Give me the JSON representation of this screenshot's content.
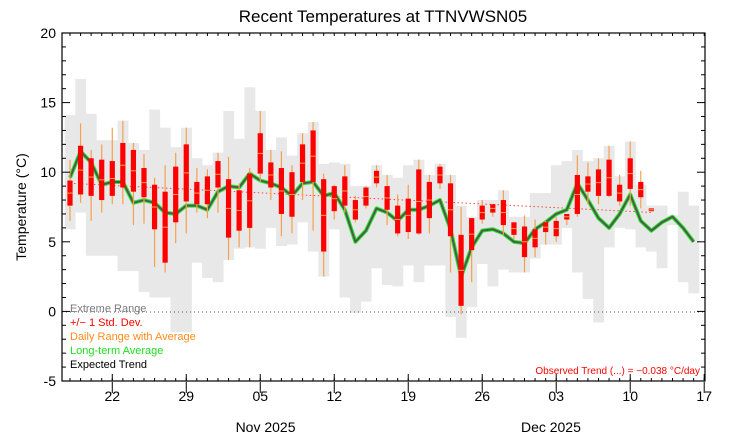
{
  "chart_data": {
    "type": "bar",
    "title": "Recent Temperatures at TTNVWSN05",
    "ylabel": "Temperature (°C)",
    "xlabel": "",
    "ylim": [
      -5,
      20
    ],
    "yticks": [
      "-5",
      "0",
      "5",
      "10",
      "15",
      "20"
    ],
    "ytick_values": [
      -5,
      0,
      5,
      10,
      15,
      20
    ],
    "xticks": [
      {
        "day_index": 4,
        "label": "22"
      },
      {
        "day_index": 11,
        "label": "29"
      },
      {
        "day_index": 18,
        "label": "05"
      },
      {
        "day_index": 25,
        "label": "12"
      },
      {
        "day_index": 32,
        "label": "19"
      },
      {
        "day_index": 39,
        "label": "26"
      },
      {
        "day_index": 46,
        "label": "03"
      },
      {
        "day_index": 53,
        "label": "10"
      },
      {
        "day_index": 60,
        "label": "17"
      }
    ],
    "month_labels": [
      {
        "day_index": 18.5,
        "label": "Nov 2025"
      },
      {
        "day_index": 45.5,
        "label": "Dec 2025"
      }
    ],
    "first_day": "2025-10-18",
    "legend": {
      "placement": "bottom-left",
      "items": [
        {
          "label": "Extreme Range",
          "color": "#7a7a7a"
        },
        {
          "label": "+/− 1 Std. Dev.",
          "color": "#ff0000"
        },
        {
          "label": "Daily Range with Average",
          "color": "#ff8a1c"
        },
        {
          "label": "Long-term Average",
          "color": "#22dd22"
        },
        {
          "label": "Expected Trend",
          "color": "#000000"
        }
      ]
    },
    "trend_label": "Observed Trend (...) = −0.038 °C/day",
    "trend": {
      "slope_per_day": -0.038,
      "start_value": 9.2,
      "start_day": 0,
      "end_day": 55
    },
    "extreme_max": [
      14.1,
      16.7,
      14.2,
      12.3,
      12.3,
      13.7,
      12.1,
      11.6,
      14.5,
      13.2,
      11.8,
      13.2,
      11.0,
      10.5,
      11.4,
      14.4,
      12.4,
      16.1,
      14.4,
      11.6,
      12.5,
      11.2,
      12.8,
      13.6,
      10.6,
      10.7,
      10.6,
      9.0,
      9.0,
      10.5,
      9.8,
      9.6,
      10.5,
      10.9,
      9.8,
      10.6,
      9.8,
      7.6,
      6.8,
      8.0,
      8.0,
      8.7,
      6.8,
      6.8,
      8.5,
      8.5,
      10.5,
      10.8,
      11.6,
      10.8,
      11.0,
      11.9,
      9.7,
      12.2,
      9.1,
      7.6,
      7.6,
      6.9,
      8.6,
      7.6
    ],
    "extreme_min": [
      5.9,
      7.1,
      4.0,
      4.0,
      4.0,
      2.9,
      2.9,
      1.4,
      1.0,
      1.0,
      -1.5,
      -1.5,
      3.5,
      2.4,
      2.1,
      3.7,
      4.5,
      4.6,
      4.5,
      6.0,
      4.7,
      4.8,
      6.4,
      4.3,
      2.5,
      5.9,
      1.0,
      -0.1,
      0.7,
      3.1,
      1.9,
      1.8,
      3.3,
      2.1,
      3.3,
      3.3,
      -0.4,
      -1.9,
      0.3,
      3.4,
      1.8,
      3.0,
      2.8,
      2.8,
      3.8,
      4.8,
      4.8,
      6.0,
      2.8,
      0.9,
      -0.8,
      4.6,
      6.0,
      5.9,
      4.6,
      4.3,
      3.1,
      6.2,
      2.1,
      1.3
    ],
    "std_low": [
      7.6,
      8.4,
      8.3,
      8.0,
      8.3,
      8.9,
      8.6,
      8.2,
      5.9,
      3.5,
      6.4,
      7.9,
      7.7,
      7.7,
      8.9,
      5.3,
      5.8,
      6.0,
      9.9,
      8.9,
      7.0,
      6.8,
      9.3,
      9.3,
      4.3,
      7.2,
      7.6,
      6.6,
      7.6,
      9.2,
      7.3,
      5.6,
      5.7,
      5.6,
      6.7,
      9.2,
      5.4,
      0.4,
      4.4,
      6.6,
      7.1,
      6.2,
      5.5,
      3.9,
      4.6,
      5.7,
      5.4,
      6.6,
      7.0,
      8.6,
      8.3,
      8.3,
      7.9,
      8.8,
      8.2,
      7.2
    ],
    "std_high": [
      9.4,
      11.9,
      11.0,
      10.9,
      10.8,
      12.1,
      11.6,
      10.3,
      9.1,
      8.6,
      10.4,
      12.0,
      9.3,
      9.7,
      10.8,
      9.5,
      8.7,
      9.9,
      12.8,
      10.7,
      10.3,
      10.0,
      12.0,
      13.0,
      9.5,
      9.0,
      9.7,
      8.0,
      8.9,
      10.1,
      9.0,
      7.6,
      8.1,
      10.2,
      9.3,
      10.4,
      9.2,
      5.5,
      6.7,
      7.6,
      7.7,
      8.0,
      6.4,
      6.1,
      5.9,
      6.4,
      6.5,
      7.0,
      9.8,
      9.7,
      10.2,
      10.9,
      9.1,
      11.0,
      9.3,
      7.4
    ],
    "range_low": [
      6.5,
      7.8,
      6.5,
      7.1,
      7.7,
      7.7,
      6.2,
      6.3,
      3.2,
      2.8,
      4.9,
      5.6,
      7.1,
      6.7,
      7.1,
      3.7,
      4.6,
      4.6,
      9.3,
      8.0,
      5.4,
      5.6,
      8.0,
      5.8,
      2.5,
      6.6,
      7.1,
      6.4,
      7.4,
      8.9,
      6.2,
      5.4,
      5.2,
      5.5,
      5.6,
      8.8,
      2.8,
      -0.2,
      2.1,
      6.3,
      6.8,
      5.5,
      5.2,
      2.8,
      3.9,
      4.8,
      5.0,
      6.2,
      6.8,
      7.7,
      7.7,
      8.2,
      7.6,
      7.6,
      7.4,
      null
    ],
    "range_high": [
      10.9,
      13.5,
      11.6,
      12.0,
      13.2,
      13.7,
      12.1,
      11.3,
      9.6,
      10.5,
      11.4,
      13.2,
      10.3,
      10.2,
      11.4,
      11.1,
      9.2,
      10.3,
      14.4,
      11.6,
      11.5,
      10.5,
      12.8,
      13.6,
      9.9,
      9.1,
      10.5,
      8.3,
      9.0,
      10.5,
      9.8,
      8.4,
      9.1,
      10.9,
      9.8,
      10.6,
      9.8,
      7.5,
      6.7,
      8.0,
      7.7,
      8.7,
      6.4,
      6.9,
      6.6,
      6.5,
      6.8,
      7.0,
      11.2,
      10.7,
      11.0,
      11.9,
      9.8,
      12.2,
      10.1,
      null
    ],
    "long_term_average": [
      9.6,
      11.5,
      10.7,
      9.1,
      9.3,
      9.3,
      7.8,
      8.0,
      7.8,
      7.1,
      7.0,
      7.6,
      7.6,
      7.3,
      8.6,
      9.0,
      8.9,
      9.9,
      9.4,
      9.2,
      8.9,
      8.3,
      9.2,
      9.3,
      8.3,
      8.5,
      7.3,
      5.0,
      5.8,
      7.4,
      7.1,
      6.5,
      7.3,
      7.3,
      7.6,
      8.0,
      5.9,
      2.5,
      4.6,
      5.8,
      5.9,
      5.6,
      5.0,
      4.9,
      5.9,
      6.4,
      7.0,
      7.3,
      9.2,
      8.0,
      6.7,
      6.0,
      7.0,
      8.4,
      6.5,
      5.8,
      6.4,
      6.8,
      6.0,
      5.0
    ],
    "colors": {
      "extreme": "#e8e8e8",
      "std": "#ff0000",
      "range": "#f5a04e",
      "long_term": "#22ee22",
      "expected": "#555555",
      "trend": "#ff4444"
    }
  }
}
